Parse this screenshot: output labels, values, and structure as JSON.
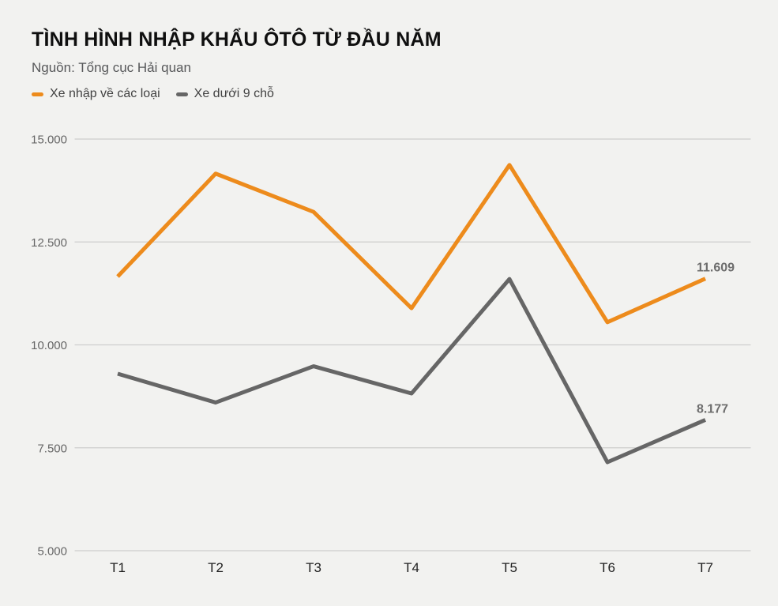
{
  "page": {
    "background_color": "#f2f2f0"
  },
  "header": {
    "title": "TÌNH HÌNH NHẬP KHẨU ÔTÔ TỪ ĐẦU NĂM",
    "subtitle": "Nguồn: Tổng cục Hải quan"
  },
  "legend": {
    "items": [
      {
        "label": "Xe nhập về các loại",
        "color": "#ed8b1c"
      },
      {
        "label": "Xe dưới 9 chỗ",
        "color": "#666666"
      }
    ]
  },
  "chart_data": {
    "type": "line",
    "title": "TÌNH HÌNH NHẬP KHẨU ÔTÔ TỪ ĐẦU NĂM",
    "subtitle": "Nguồn: Tổng cục Hải quan",
    "xlabel": "",
    "ylabel": "",
    "categories": [
      "T1",
      "T2",
      "T3",
      "T4",
      "T5",
      "T6",
      "T7"
    ],
    "series": [
      {
        "name": "Xe nhập về các loại",
        "color": "#ed8b1c",
        "values": [
          11660,
          14160,
          13230,
          10890,
          14370,
          10550,
          11609
        ],
        "end_label": "11.609"
      },
      {
        "name": "Xe dưới 9 chỗ",
        "color": "#666666",
        "values": [
          9300,
          8600,
          9480,
          8820,
          11600,
          7150,
          8177
        ],
        "end_label": "8.177"
      }
    ],
    "ylim": [
      5000,
      15000
    ],
    "yticks": [
      {
        "value": 15000,
        "label": "15.000"
      },
      {
        "value": 12500,
        "label": "12.500"
      },
      {
        "value": 10000,
        "label": "10.000"
      },
      {
        "value": 7500,
        "label": "7.500"
      },
      {
        "value": 5000,
        "label": "5.000"
      }
    ],
    "grid": true,
    "legend_position": "top-left",
    "colors": {
      "grid_line": "#cdcdcd",
      "ytick_text": "#666666",
      "xtick_text": "#1f1f1f",
      "end_label_text": "#6d6d6d",
      "background": "#f2f2f0"
    }
  }
}
